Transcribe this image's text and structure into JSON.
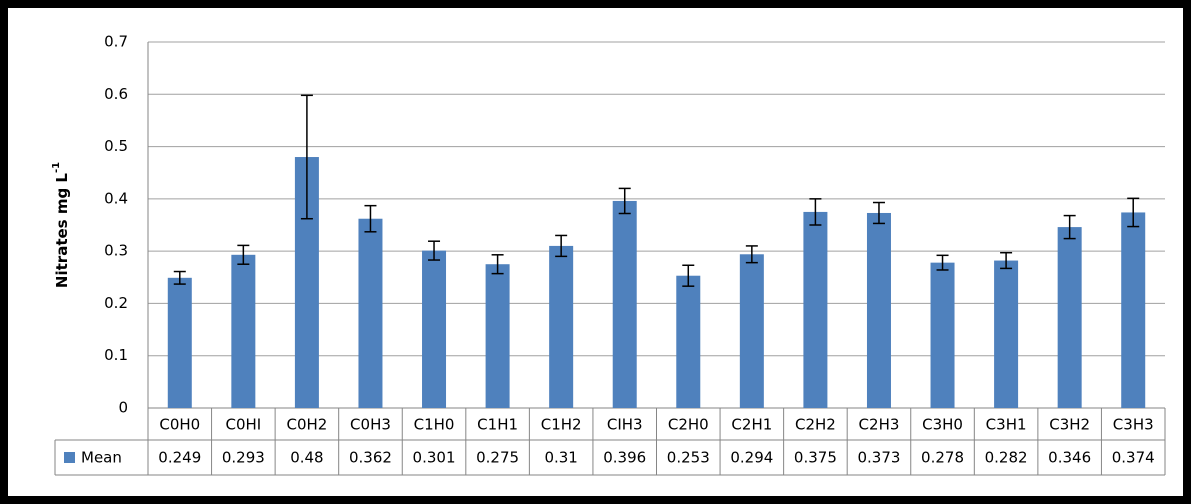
{
  "chart_data": {
    "type": "bar",
    "y_label": {
      "text": "Nitrates mg L",
      "superscript": "-1"
    },
    "categories": [
      "C0H0",
      "C0HI",
      "C0H2",
      "C0H3",
      "C1H0",
      "C1H1",
      "C1H2",
      "CIH3",
      "C2H0",
      "C2H1",
      "C2H2",
      "C2H3",
      "C3H0",
      "C3H1",
      "C3H2",
      "C3H3"
    ],
    "series": [
      {
        "name": "Mean",
        "color": "#4f81bd",
        "values": [
          0.249,
          0.293,
          0.48,
          0.362,
          0.301,
          0.275,
          0.31,
          0.396,
          0.253,
          0.294,
          0.375,
          0.373,
          0.278,
          0.282,
          0.346,
          0.374
        ],
        "errors": [
          0.012,
          0.018,
          0.118,
          0.025,
          0.018,
          0.018,
          0.02,
          0.024,
          0.02,
          0.016,
          0.025,
          0.02,
          0.014,
          0.015,
          0.022,
          0.027
        ]
      }
    ],
    "ylim": [
      0,
      0.7
    ],
    "yticks": [
      0,
      0.1,
      0.2,
      0.3,
      0.4,
      0.5,
      0.6,
      0.7
    ],
    "grid": true,
    "data_table": true
  }
}
